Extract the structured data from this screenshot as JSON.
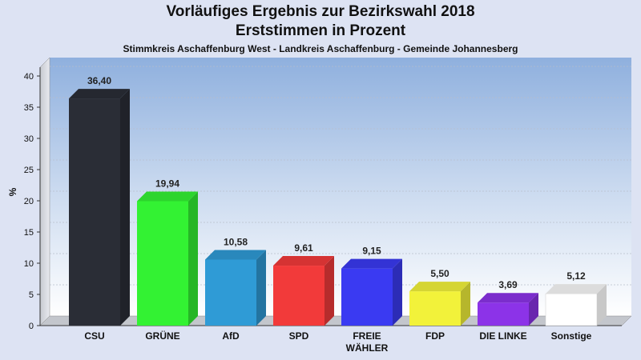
{
  "chart_data": {
    "type": "bar",
    "title": "Vorläufiges Ergebnis zur Bezirkswahl 2018",
    "title_line2": "Erststimmen in Prozent",
    "subtitle": "Stimmkreis Aschaffenburg West - Landkreis Aschaffenburg - Gemeinde Johannesberg",
    "ylabel": "%",
    "xlabel": "",
    "ylim": [
      0,
      40
    ],
    "yticks": [
      0,
      5,
      10,
      15,
      20,
      25,
      30,
      35,
      40
    ],
    "grid": true,
    "categories": [
      "CSU",
      "GRÜNE",
      "AfD",
      "SPD",
      "FREIE WÄHLER",
      "FDP",
      "DIE LINKE",
      "Sonstige"
    ],
    "values": [
      36.4,
      19.94,
      10.58,
      9.61,
      9.15,
      5.5,
      3.69,
      5.12
    ],
    "value_labels": [
      "36,40",
      "19,94",
      "10,58",
      "9,61",
      "9,15",
      "5,50",
      "3,69",
      "5,12"
    ],
    "colors": [
      "#2a2d36",
      "#33f233",
      "#2f9bd6",
      "#f23a3a",
      "#3a3af2",
      "#f2f23a",
      "#8c33e8",
      "#ffffff"
    ]
  }
}
